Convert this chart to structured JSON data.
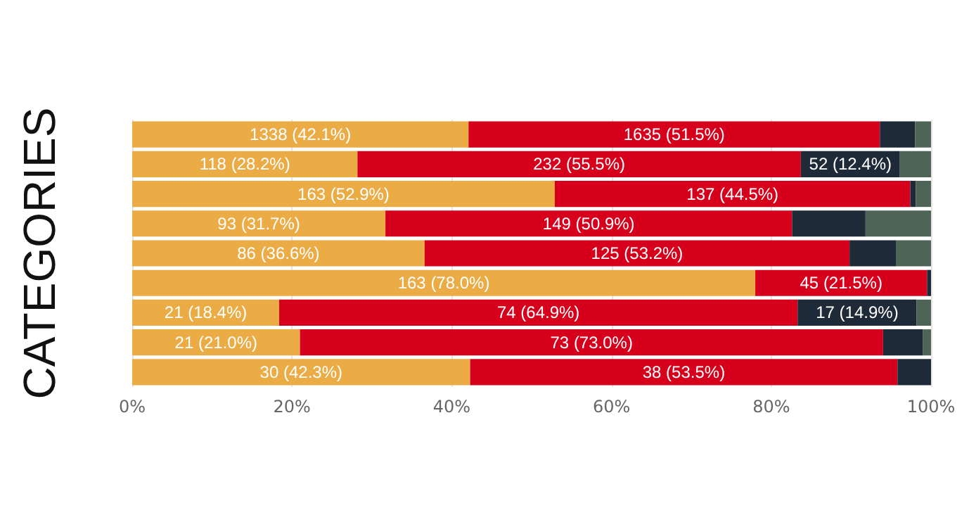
{
  "chart_data": {
    "type": "bar",
    "orientation": "horizontal",
    "stacked": true,
    "ylabel": "CATEGORIES",
    "categories": [
      null,
      null,
      null,
      null,
      null,
      null,
      null,
      null,
      null
    ],
    "xlim": [
      0,
      100
    ],
    "xticks": [
      {
        "value": 0,
        "label": "0%"
      },
      {
        "value": 20,
        "label": "20%"
      },
      {
        "value": 40,
        "label": "40%"
      },
      {
        "value": 60,
        "label": "60%"
      },
      {
        "value": 80,
        "label": "80%"
      },
      {
        "value": 100,
        "label": "100%"
      }
    ],
    "grid": "x",
    "series": [
      {
        "color": "#ebab45",
        "values": [
          42.1,
          28.2,
          52.9,
          31.7,
          36.6,
          78.0,
          18.4,
          21.0,
          42.3
        ],
        "value_labels": [
          "1338 (42.1%)",
          "118 (28.2%)",
          "163 (52.9%)",
          "93 (31.7%)",
          "86 (36.6%)",
          "163 (78.0%)",
          "21 (18.4%)",
          "21 (21.0%)",
          "30 (42.3%)"
        ]
      },
      {
        "color": "#d6001c",
        "values": [
          51.5,
          55.5,
          44.5,
          50.9,
          53.2,
          21.5,
          64.9,
          73.0,
          53.5
        ],
        "value_labels": [
          "1635 (51.5%)",
          "232 (55.5%)",
          "137 (44.5%)",
          "149 (50.9%)",
          "125 (53.2%)",
          "45 (21.5%)",
          "74 (64.9%)",
          "73 (73.0%)",
          "38 (53.5%)"
        ]
      },
      {
        "color": "#1f2a38",
        "values": [
          4.4,
          12.4,
          0.7,
          9.2,
          5.8,
          0.5,
          14.9,
          5.0,
          4.2
        ],
        "value_labels": [
          null,
          "52 (12.4%)",
          null,
          null,
          null,
          null,
          "17 (14.9%)",
          null,
          null
        ]
      },
      {
        "color": "#4d6456",
        "values": [
          2.0,
          3.9,
          1.9,
          8.2,
          4.4,
          0,
          1.8,
          1.0,
          0
        ],
        "value_labels": [
          null,
          null,
          null,
          null,
          null,
          null,
          null,
          null,
          null
        ]
      }
    ]
  }
}
